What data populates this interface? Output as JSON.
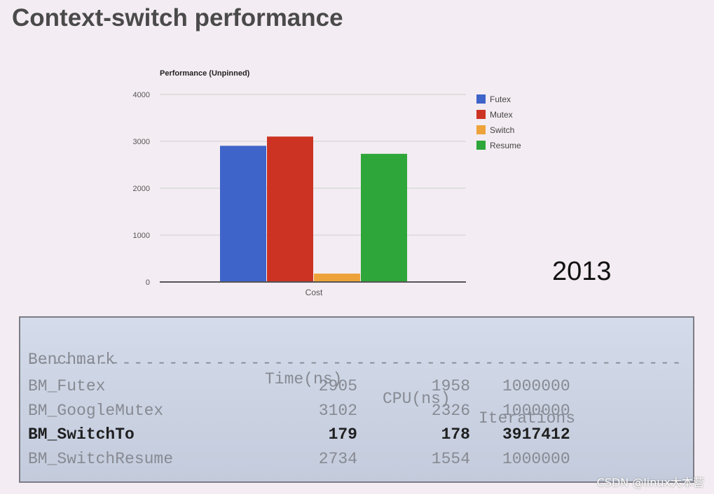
{
  "slide": {
    "title": "Context-switch performance",
    "year": "2013",
    "watermark": "CSDN @linux大本营"
  },
  "colors": {
    "background": "#f3ecf2",
    "futex": "#3e63c9",
    "mutex": "#cc3323",
    "switch": "#eda33a",
    "resume": "#2ea639"
  },
  "chart_data": {
    "type": "bar",
    "title": "Performance (Unpinned)",
    "categories": [
      "Cost"
    ],
    "series": [
      {
        "name": "Futex",
        "values": [
          2905
        ],
        "color": "#3e63c9"
      },
      {
        "name": "Mutex",
        "values": [
          3102
        ],
        "color": "#cc3323"
      },
      {
        "name": "Switch",
        "values": [
          179
        ],
        "color": "#eda33a"
      },
      {
        "name": "Resume",
        "values": [
          2734
        ],
        "color": "#2ea639"
      }
    ],
    "xlabel": "",
    "ylabel": "",
    "ylim": [
      0,
      4000
    ],
    "yticks": [
      "0",
      "1000",
      "2000",
      "3000",
      "4000"
    ],
    "grid": true,
    "legend": "right"
  },
  "benchmark": {
    "headers": {
      "name": "Benchmark",
      "time": "Time(ns)",
      "cpu": "CPU(ns)",
      "iterations": "Iterations"
    },
    "separator": "--------------------------------------------------------",
    "rows": [
      {
        "name": "BM_Futex",
        "time": "2905",
        "cpu": "1958",
        "iterations": "1000000",
        "bold": false
      },
      {
        "name": "BM_GoogleMutex",
        "time": "3102",
        "cpu": "2326",
        "iterations": "1000000",
        "bold": false
      },
      {
        "name": "BM_SwitchTo",
        "time": "179",
        "cpu": "178",
        "iterations": "3917412",
        "bold": true
      },
      {
        "name": "BM_SwitchResume",
        "time": "2734",
        "cpu": "1554",
        "iterations": "1000000",
        "bold": false
      }
    ]
  }
}
